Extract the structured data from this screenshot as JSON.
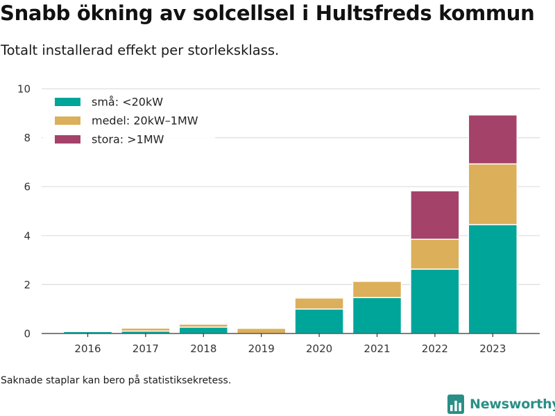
{
  "title": "Snabb ökning av solcellsel i Hultsfreds kommun",
  "subtitle": "Totalt installerad effekt per storleksklass.",
  "footnote": "Saknade staplar kan bero på statistiksekretess.",
  "brand": {
    "name": "Newsworthy",
    "icon": "bar-chart-logo-icon",
    "color": "#2a8f86"
  },
  "chart_data": {
    "type": "bar",
    "stacked": true,
    "categories": [
      "2016",
      "2017",
      "2018",
      "2019",
      "2020",
      "2021",
      "2022",
      "2023"
    ],
    "series": [
      {
        "name": "små: <20kW",
        "color": "#00a59a",
        "values": [
          0.08,
          0.1,
          0.26,
          0,
          1.0,
          1.47,
          2.63,
          4.45
        ]
      },
      {
        "name": "medel: 20kW–1MW",
        "color": "#dcaf5a",
        "values": [
          0,
          0.12,
          0.12,
          0.21,
          0.45,
          0.66,
          1.22,
          2.48
        ]
      },
      {
        "name": "stora: >1MW",
        "color": "#a4426a",
        "values": [
          0,
          0,
          0,
          0,
          0,
          0,
          1.98,
          2.0
        ]
      }
    ],
    "yticks": [
      "0",
      "2",
      "4",
      "6",
      "8",
      "10"
    ],
    "ylim": [
      0,
      10
    ],
    "grid": true,
    "legend": "top-left"
  }
}
